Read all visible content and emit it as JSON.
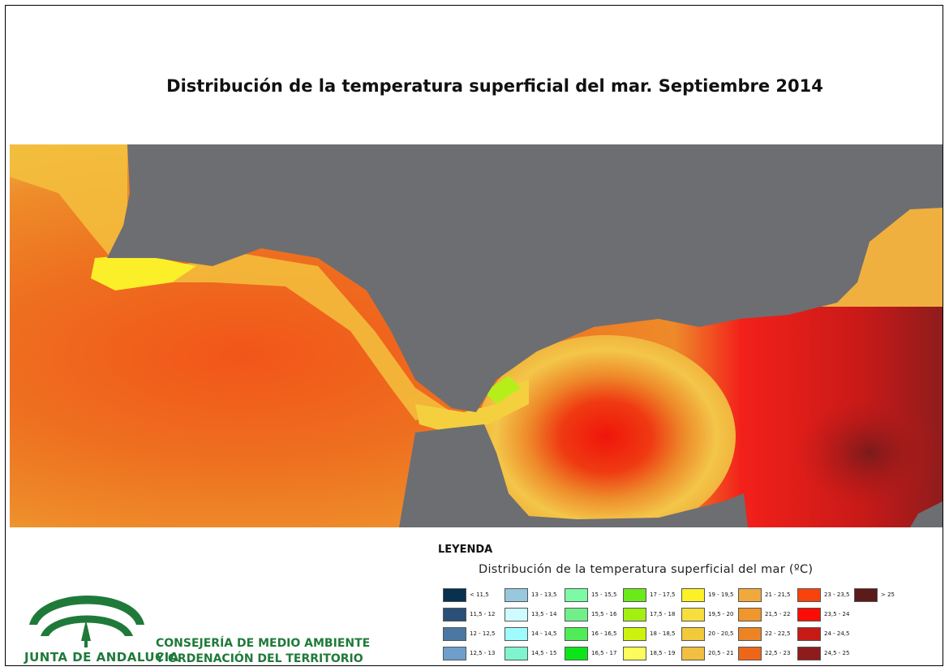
{
  "title": "Distribución de la temperatura superficial del mar. Septiembre 2014",
  "legend": {
    "heading": "LEYENDA",
    "subtitle": "Distribución de la temperatura superficial del mar (ºC)",
    "classes": [
      {
        "label": "< 11,5",
        "color": "#08304f"
      },
      {
        "label": "11,5 - 12",
        "color": "#2a5078"
      },
      {
        "label": "12 - 12,5",
        "color": "#4a78a3"
      },
      {
        "label": "12,5 - 13",
        "color": "#6e9fcc"
      },
      {
        "label": "13 - 13,5",
        "color": "#97c8de"
      },
      {
        "label": "13,5 - 14",
        "color": "#cdfbff"
      },
      {
        "label": "14 - 14,5",
        "color": "#9ffcfc"
      },
      {
        "label": "14,5 - 15",
        "color": "#7ff5cf"
      },
      {
        "label": "15 - 15,5",
        "color": "#7dfaa6"
      },
      {
        "label": "15,5 - 16",
        "color": "#71f08a"
      },
      {
        "label": "16 - 16,5",
        "color": "#4fec57"
      },
      {
        "label": "16,5 - 17",
        "color": "#0ce51a"
      },
      {
        "label": "17 - 17,5",
        "color": "#6bea1a"
      },
      {
        "label": "17,5 - 18",
        "color": "#a3ef12"
      },
      {
        "label": "18 - 18,5",
        "color": "#cdf20e"
      },
      {
        "label": "18,5 - 19",
        "color": "#fdfc5c"
      },
      {
        "label": "19 - 19,5",
        "color": "#fbf126"
      },
      {
        "label": "19,5 - 20",
        "color": "#f6df3c"
      },
      {
        "label": "20 - 20,5",
        "color": "#f1c93a"
      },
      {
        "label": "20,5 - 21",
        "color": "#f1c042"
      },
      {
        "label": "21 - 21,5",
        "color": "#f2a93c"
      },
      {
        "label": "21,5 - 22",
        "color": "#ef962c"
      },
      {
        "label": "22 - 22,5",
        "color": "#ec8425"
      },
      {
        "label": "22,5 - 23",
        "color": "#ee6718"
      },
      {
        "label": "23 - 23,5",
        "color": "#f8440c"
      },
      {
        "label": "23,5 - 24",
        "color": "#fb0d06"
      },
      {
        "label": "24 - 24,5",
        "color": "#c71b17"
      },
      {
        "label": "24,5 - 25",
        "color": "#8e1c1c"
      },
      {
        "label": "> 25",
        "color": "#5c1a1a"
      }
    ]
  },
  "logo_text": "JUNTA DE ANDALUCIA",
  "institution": {
    "line1": "CONSEJERÍA DE MEDIO AMBIENTE",
    "line2": "Y ORDENACIÓN DEL TERRITORIO"
  },
  "colors": {
    "land": "#6d6e71",
    "brand_green": "#1f7a3a"
  }
}
